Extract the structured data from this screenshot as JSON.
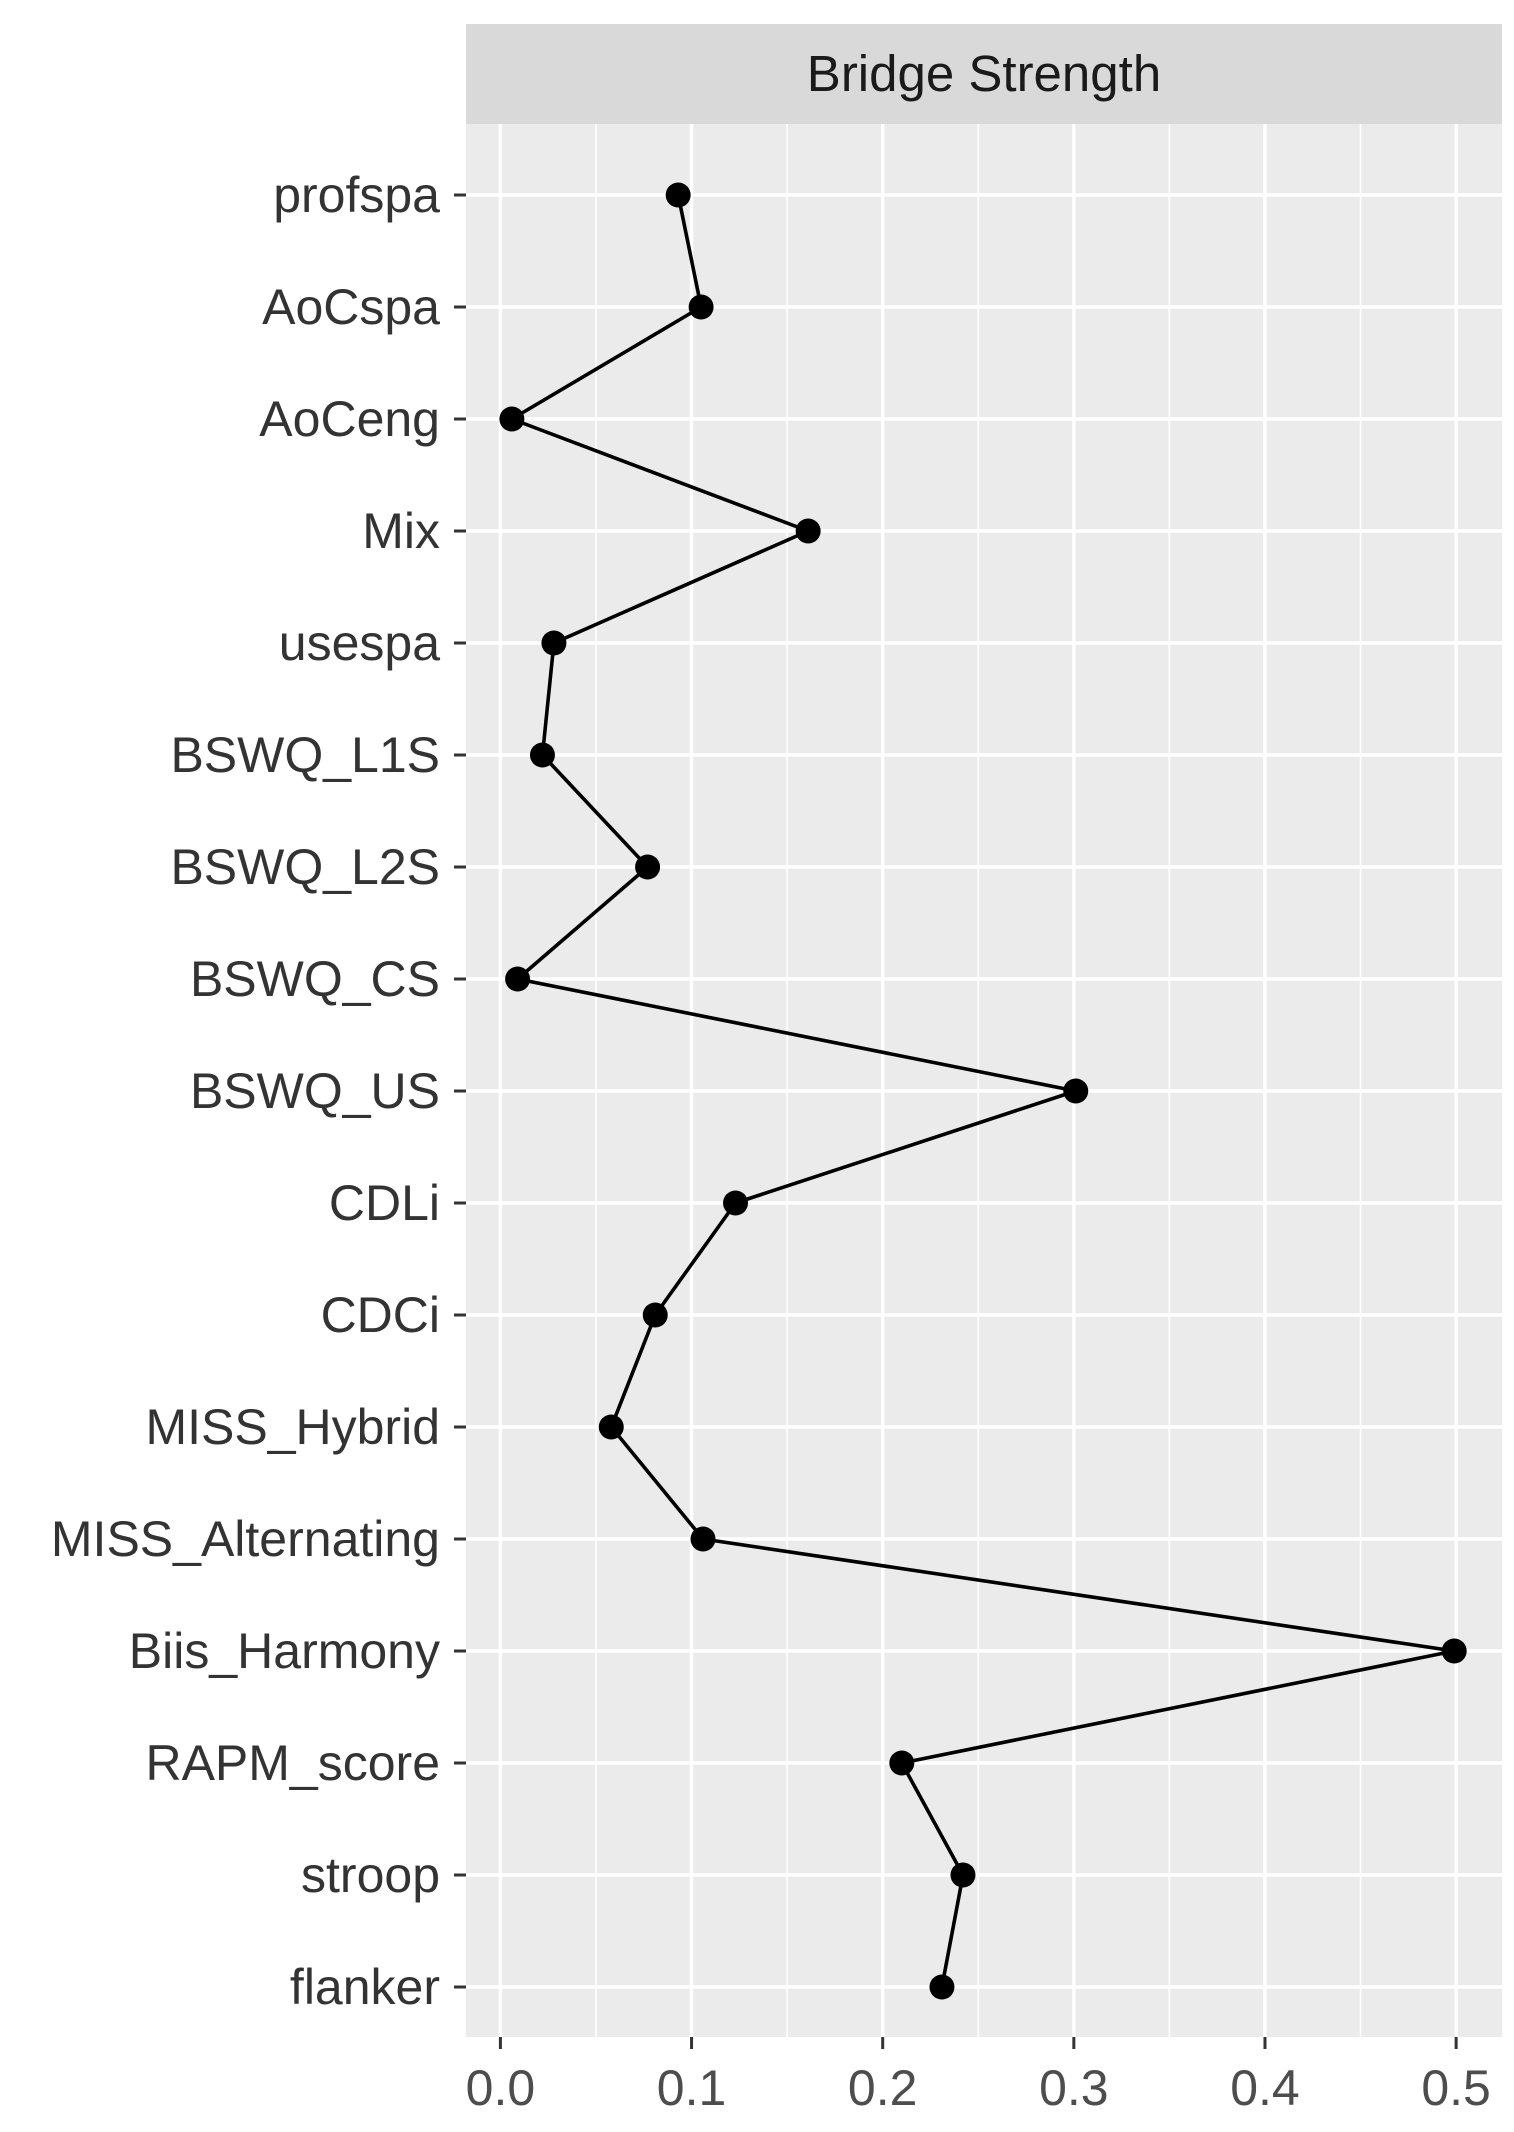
{
  "chart_data": {
    "type": "line",
    "facet_title": "Bridge Strength",
    "xlabel": "",
    "ylabel": "",
    "xlim": [
      -0.018,
      0.524
    ],
    "x_ticks": [
      0.0,
      0.1,
      0.2,
      0.3,
      0.4,
      0.5
    ],
    "x_tick_labels": [
      "0.0",
      "0.1",
      "0.2",
      "0.3",
      "0.4",
      "0.5"
    ],
    "x_minor_ticks": [
      0.05,
      0.15,
      0.25,
      0.35,
      0.45
    ],
    "categories": [
      "profspa",
      "AoCspa",
      "AoCeng",
      "Mix",
      "usespa",
      "BSWQ_L1S",
      "BSWQ_L2S",
      "BSWQ_CS",
      "BSWQ_US",
      "CDLi",
      "CDCi",
      "MISS_Hybrid",
      "MISS_Alternating",
      "Biis_Harmony",
      "RAPM_score",
      "stroop",
      "flanker"
    ],
    "values": [
      0.093,
      0.105,
      0.006,
      0.161,
      0.028,
      0.022,
      0.077,
      0.009,
      0.301,
      0.123,
      0.081,
      0.058,
      0.106,
      0.499,
      0.21,
      0.242,
      0.231
    ],
    "grid": true,
    "legend": "none",
    "colors": {
      "panel_background": "#ebebeb",
      "strip_background": "#d9d9d9",
      "grid_line": "#ffffff",
      "series": "#000000"
    }
  }
}
